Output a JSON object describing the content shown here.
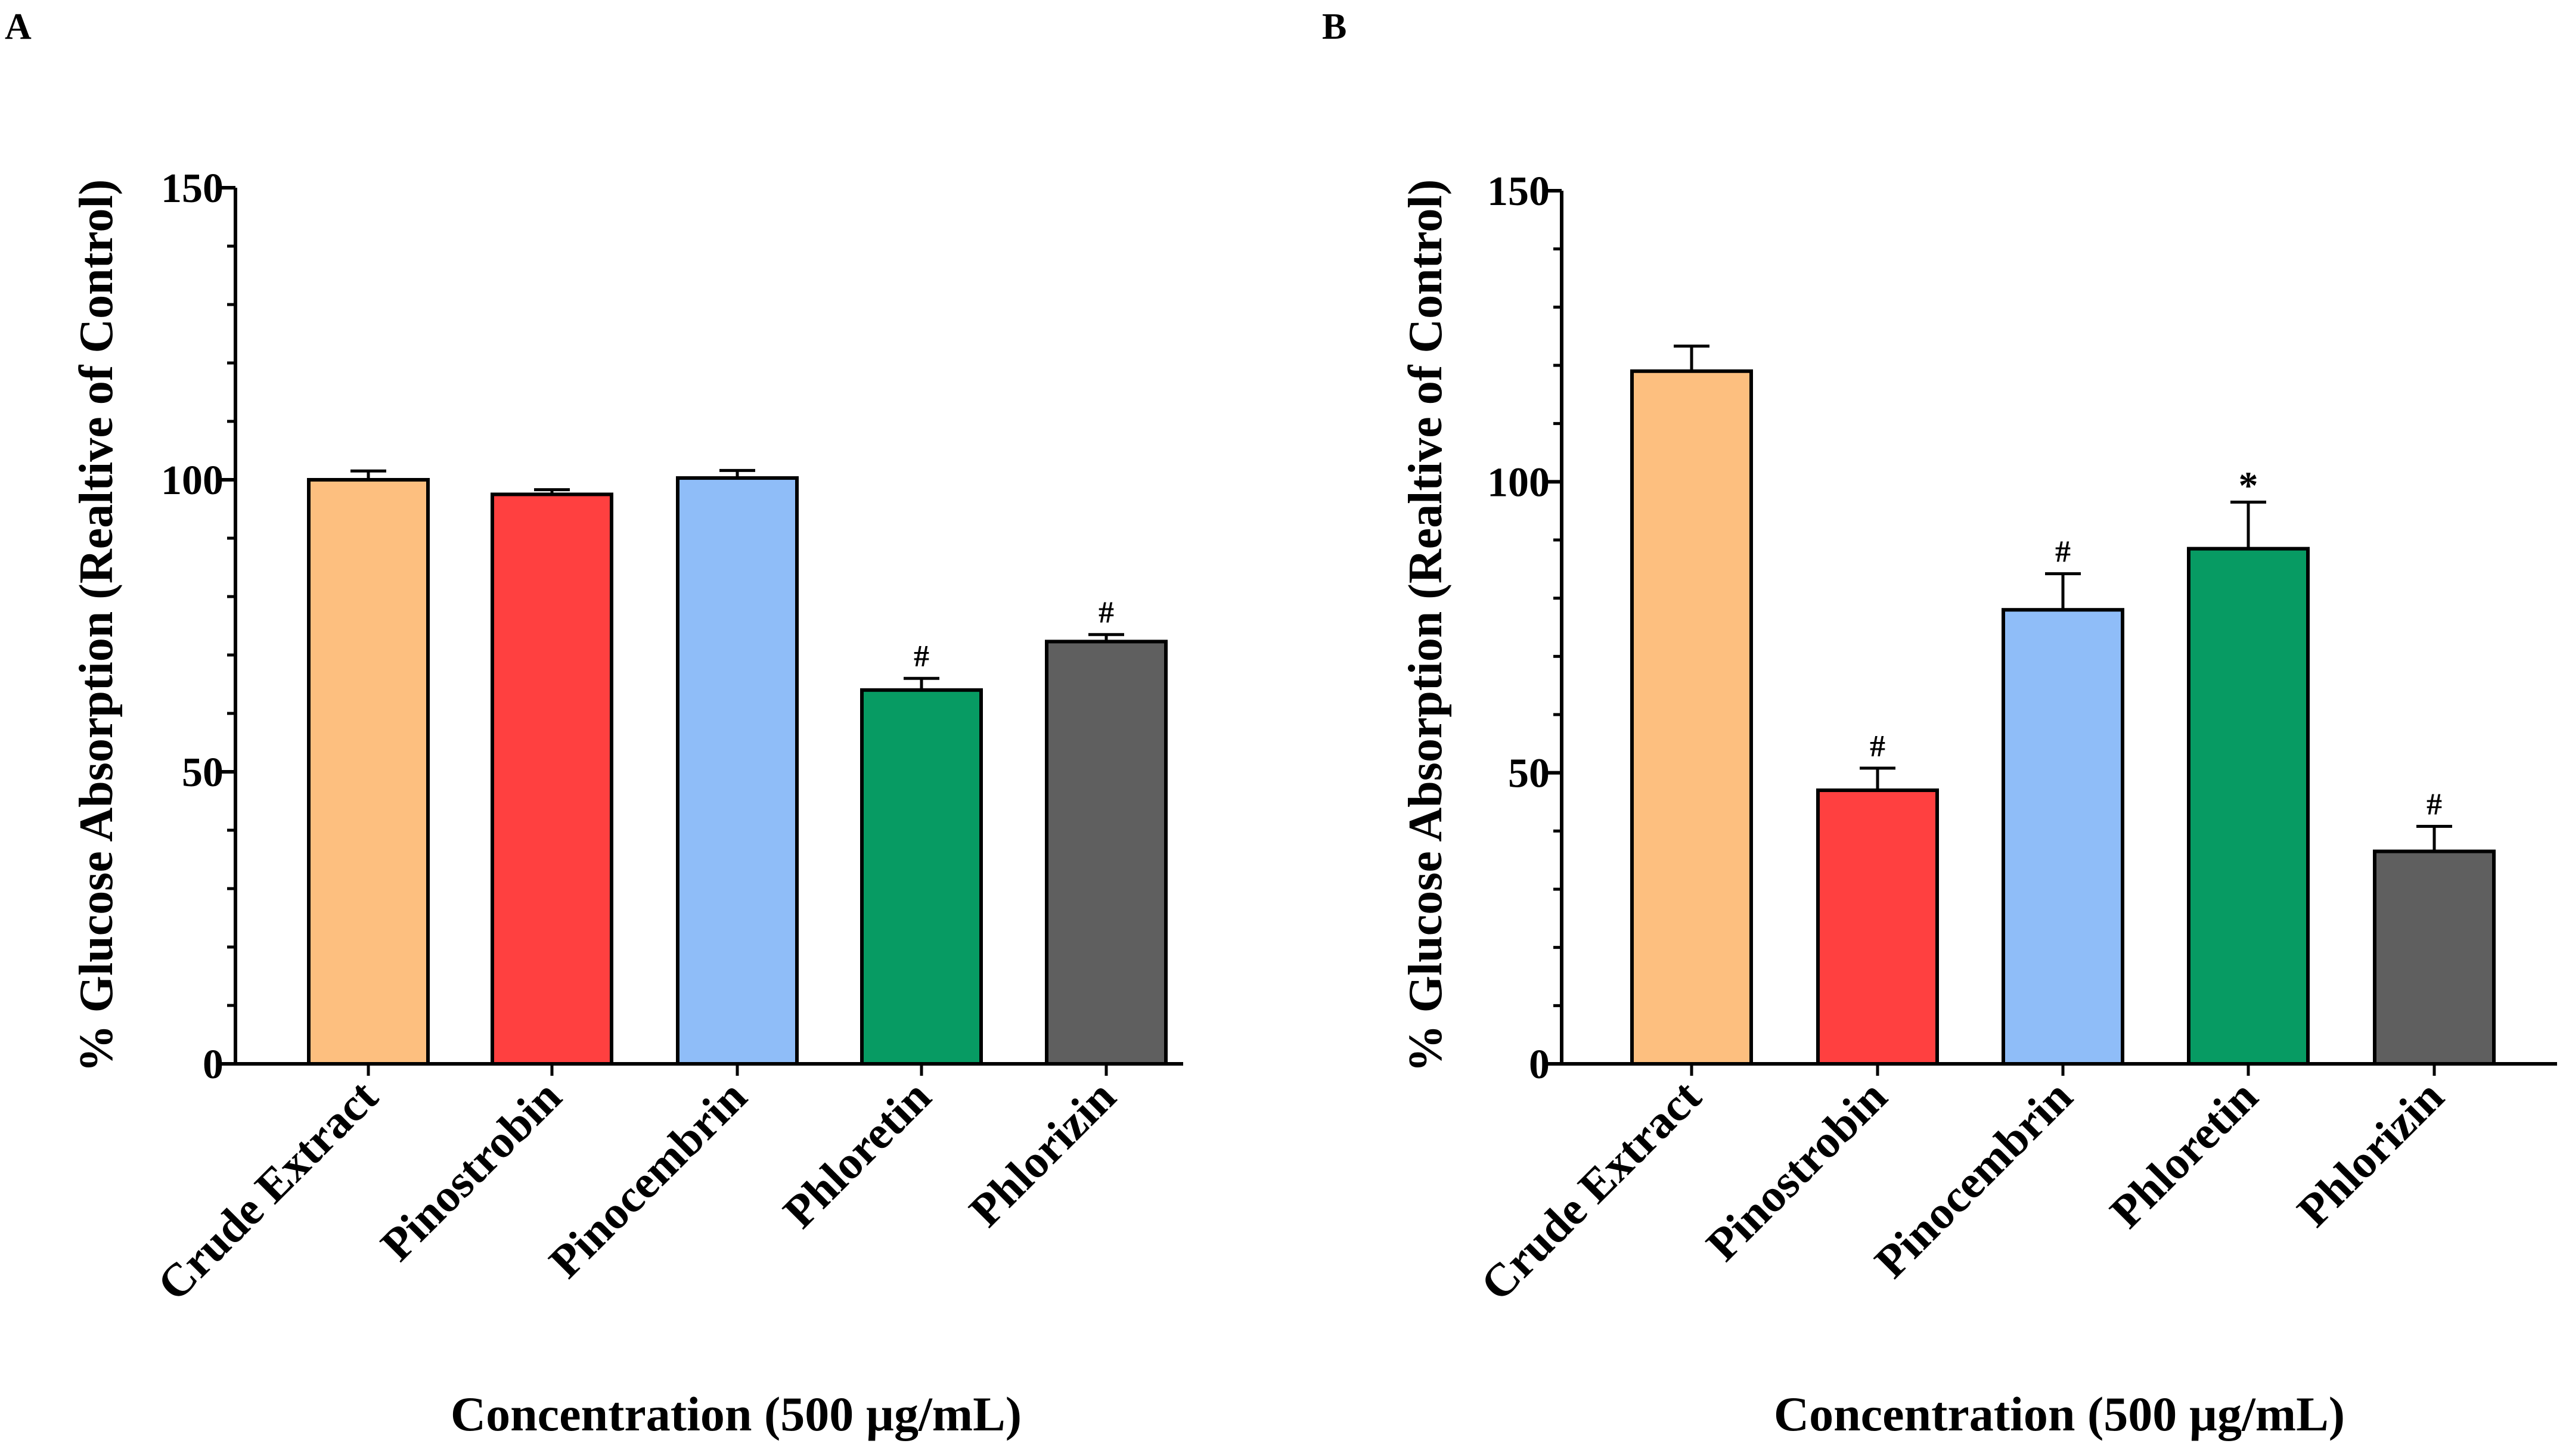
{
  "chart_data": [
    {
      "panel_label": "A",
      "type": "bar",
      "categories": [
        "Crude Extract",
        "Pinostrobin",
        "Pinocembrin",
        "Phloretin",
        "Phlorizin"
      ],
      "values": [
        100,
        97.5,
        100.3,
        64,
        72.3
      ],
      "errors": [
        1.5,
        0.8,
        1.3,
        2,
        1.2
      ],
      "annotations": [
        "",
        "",
        "",
        "#",
        "#"
      ],
      "colors": [
        "#FDBF7F",
        "#FF4040",
        "#8FBDF8",
        "#079B63",
        "#5F5F5F"
      ],
      "xlabel": "Concentration (500 µg/mL)",
      "ylabel": "% Glucose Absorption (Realtive of Control)",
      "ylim": [
        0,
        150
      ],
      "yticks": [
        0,
        50,
        100,
        150
      ],
      "ytick_labels": [
        "0",
        "50",
        "100",
        "150"
      ],
      "minor_tick_step": 10
    },
    {
      "panel_label": "B",
      "type": "bar",
      "categories": [
        "Crude Extract",
        "Pinostrobin",
        "Pinocembrin",
        "Phloretin",
        "Phlorizin"
      ],
      "values": [
        119,
        47,
        78,
        88.5,
        36.5
      ],
      "errors": [
        4.3,
        3.8,
        6.2,
        8,
        4.3
      ],
      "annotations": [
        "",
        "#",
        "#",
        "*",
        "#"
      ],
      "colors": [
        "#FDBF7F",
        "#FF4040",
        "#8FBDF8",
        "#079B63",
        "#5F5F5F"
      ],
      "xlabel": "Concentration (500 µg/mL)",
      "ylabel": "% Glucose Absorption (Realtive of Control)",
      "ylim": [
        0,
        150
      ],
      "yticks": [
        0,
        50,
        100,
        150
      ],
      "ytick_labels": [
        "0",
        "50",
        "100",
        "150"
      ],
      "minor_tick_step": 10
    }
  ]
}
